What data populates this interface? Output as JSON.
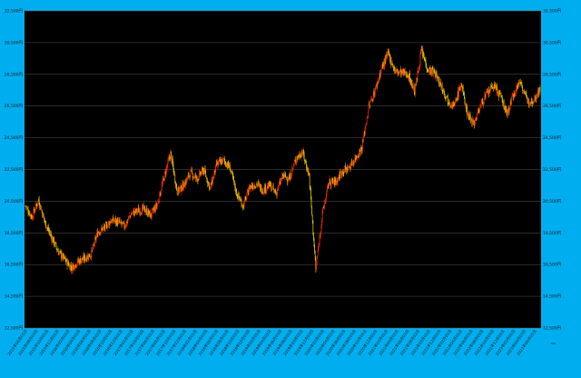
{
  "chart_data": {
    "type": "candlestick",
    "title": "",
    "xlabel": "",
    "ylabel": "",
    "ylim": [
      12500,
      32500
    ],
    "y_ticks": [
      12500,
      14500,
      16500,
      18500,
      20500,
      22500,
      24500,
      26500,
      28500,
      30500,
      32500
    ],
    "y_tick_labels": [
      "12,500円",
      "14,500円",
      "16,500円",
      "18,500円",
      "20,500円",
      "22,500円",
      "24,500円",
      "26,500円",
      "28,500円",
      "30,500円",
      "32,500円"
    ],
    "x_ticks": [
      "2015年06月",
      "2015年08月",
      "2015年10月",
      "2015年12月",
      "2016年02月",
      "2016年04月",
      "2016年06月",
      "2016年08月",
      "2016年10月",
      "2016年12月",
      "2017年02月",
      "2017年04月",
      "2017年06月",
      "2017年08月",
      "2017年10月",
      "2017年12月",
      "2018年02月",
      "2018年04月",
      "2018年06月",
      "2018年08月",
      "2018年10月",
      "2018年12月",
      "2019年02月",
      "2019年04月",
      "2019年06月",
      "2019年08月",
      "2019年10月",
      "2019年12月",
      "2020年02月",
      "2020年04月",
      "2020年06月",
      "2020年08月",
      "2020年10月",
      "2020年12月",
      "2021年02月",
      "2021年04月",
      "2021年06月",
      "2021年08月",
      "2021年10月",
      "2021年12月",
      "2022年02月",
      "2022年04月",
      "2022年06月",
      "2022年08月",
      "2022年10月",
      "2022年12月",
      "2023年02月",
      "2023年04月",
      "2023年06月"
    ],
    "x_tick_label_text": [
      "2015年06月01日",
      "2015年08月03日",
      "2015年10月01日",
      "2015年12月01日",
      "2016年02月01日",
      "2016年04月01日",
      "2016年06月01日",
      "2016年08月01日",
      "2016年10月03日",
      "2016年12月01日",
      "2017年02月01日",
      "2017年04月03日",
      "2017年06月01日",
      "2017年08月01日",
      "2017年10月02日",
      "2017年12月01日",
      "2018年02月01日",
      "2018年04月02日",
      "2018年06月01日",
      "2018年08月01日",
      "2018年10月01日",
      "2018年12月03日",
      "2019年02月01日",
      "2019年04月01日",
      "2019年06月03日",
      "2019年08月01日",
      "2019年10月01日",
      "2019年12月02日",
      "2020年02月03日",
      "2020年04月01日",
      "2020年06月01日",
      "2020年08月03日",
      "2020年10月01日",
      "2020年12月01日",
      "2021年02月01日",
      "2021年04月01日",
      "2021年06月01日",
      "2021年08月02日",
      "2021年10月01日",
      "2021年12月01日",
      "2022年02月01日",
      "2022年04月01日",
      "2022年06月01日",
      "2022年08月01日",
      "2022年10月03日",
      "2022年12月01日",
      "2023年02月01日",
      "2023年04月03日",
      "2023年06月01日"
    ],
    "series": [
      {
        "name": "",
        "values": [
          20200,
          19500,
          20600,
          19100,
          18200,
          17300,
          16800,
          16300,
          16700,
          16900,
          17200,
          18600,
          18800,
          19300,
          19200,
          18900,
          19700,
          19900,
          20000,
          19600,
          20300,
          22000,
          23500,
          21100,
          21500,
          22300,
          21900,
          22500,
          21300,
          22800,
          23100,
          22600,
          21000,
          20200,
          21400,
          21600,
          21200,
          21500,
          21000,
          22100,
          21900,
          23200,
          23600,
          22100,
          16200,
          19700,
          21700,
          21700,
          22400,
          22600,
          23200,
          23900,
          26400,
          27500,
          28900,
          29800,
          28700,
          28600,
          28500,
          27400,
          30000,
          28800,
          28600,
          27800,
          26900,
          26500,
          27900,
          26000,
          25400,
          26600,
          27300,
          27800,
          27100,
          26000,
          27300,
          28100,
          26800,
          26900,
          27600
        ],
        "colors": {
          "up": "#ff2a00",
          "down": "#e6d200"
        }
      }
    ],
    "grid": true,
    "legend_placement": "bottom-right",
    "colors": {
      "background": "#00aeef",
      "plot_area": "#000000",
      "grid": "#555555",
      "up": "#ff2a00",
      "down": "#e6d200"
    }
  }
}
